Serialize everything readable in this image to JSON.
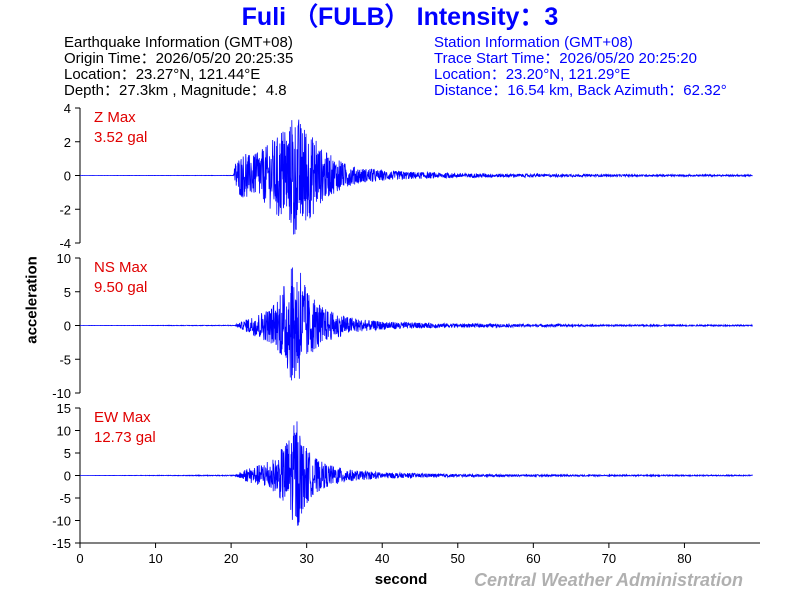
{
  "header": {
    "title": "Fuli （FULB） Intensity：3"
  },
  "earthquake_info": {
    "heading": "Earthquake Information  (GMT+08)",
    "origin_time": "Origin Time：2026/05/20 20:25:35",
    "location": "Location：23.27°N, 121.44°E",
    "depth_magnitude": "Depth：27.3km , Magnitude：4.8"
  },
  "station_info": {
    "heading": "Station Information  (GMT+08)",
    "trace_start": "Trace Start Time：2026/05/20 20:25:20",
    "location": "Location：23.20°N, 121.29°E",
    "distance": "Distance：16.54 km, Back Azimuth：62.32°"
  },
  "axes": {
    "ylabel": "acceleration",
    "xlabel": "second"
  },
  "footer": {
    "credit": "Central Weather Administration"
  },
  "colors": {
    "title": "#0000ff",
    "trace": "#0000ff",
    "max_label": "#e00000",
    "credit": "#b0b0b0"
  },
  "chart_data": [
    {
      "type": "line",
      "component": "Z",
      "max_label": "Z Max",
      "max_value": "3.52 gal",
      "ylim": [
        -4,
        4
      ],
      "yticks": [
        4,
        2,
        0,
        -2,
        -4
      ],
      "xlim": [
        0,
        90
      ],
      "xticks": [
        0,
        10,
        20,
        30,
        40,
        50,
        60,
        70,
        80
      ],
      "trace_end": 89,
      "grid": false,
      "envelope": {
        "x": [
          0,
          20.3,
          20.6,
          21.5,
          23,
          24.5,
          26,
          27.5,
          28.3,
          29,
          30,
          31,
          32,
          33.5,
          35,
          37,
          40,
          45,
          50,
          60,
          70,
          89
        ],
        "amplitude": [
          0.002,
          0.01,
          0.9,
          1.3,
          1.2,
          1.7,
          2.3,
          2.8,
          3.52,
          3.3,
          2.9,
          2.2,
          1.6,
          1.1,
          0.7,
          0.45,
          0.3,
          0.2,
          0.13,
          0.09,
          0.06,
          0.04
        ]
      }
    },
    {
      "type": "line",
      "component": "NS",
      "max_label": "NS Max",
      "max_value": "9.50 gal",
      "ylim": [
        -10,
        10
      ],
      "yticks": [
        10,
        5,
        0,
        -5,
        -10
      ],
      "xlim": [
        0,
        90
      ],
      "xticks": [
        0,
        10,
        20,
        30,
        40,
        50,
        60,
        70,
        80
      ],
      "trace_end": 89,
      "grid": false,
      "envelope": {
        "x": [
          0,
          20.5,
          21.5,
          23,
          24.5,
          26,
          27,
          28,
          28.8,
          29.5,
          30.5,
          31.5,
          33,
          35,
          37,
          40,
          45,
          50,
          60,
          70,
          89
        ],
        "amplitude": [
          0.005,
          0.05,
          0.6,
          1.5,
          2.3,
          3.2,
          5.8,
          8.5,
          9.5,
          6.5,
          4.5,
          3.2,
          2.2,
          1.4,
          0.9,
          0.6,
          0.4,
          0.3,
          0.2,
          0.12,
          0.08
        ]
      }
    },
    {
      "type": "line",
      "component": "EW",
      "max_label": "EW Max",
      "max_value": "12.73 gal",
      "ylim": [
        -15,
        15
      ],
      "yticks": [
        15,
        10,
        5,
        0,
        -5,
        -10,
        -15
      ],
      "xlim": [
        0,
        90
      ],
      "xticks": [
        0,
        10,
        20,
        30,
        40,
        50,
        60,
        70,
        80
      ],
      "trace_end": 89,
      "grid": false,
      "envelope": {
        "x": [
          0,
          20.5,
          21.5,
          23,
          24.5,
          26,
          27.2,
          28,
          28.6,
          29.5,
          30.5,
          31.5,
          33,
          35,
          37,
          40,
          45,
          50,
          60,
          70,
          89
        ],
        "amplitude": [
          0.005,
          0.1,
          1.0,
          2.0,
          2.8,
          3.8,
          7.5,
          9.5,
          12.73,
          7.5,
          5.0,
          3.5,
          2.3,
          1.5,
          1.0,
          0.7,
          0.45,
          0.3,
          0.2,
          0.15,
          0.1
        ]
      }
    }
  ]
}
